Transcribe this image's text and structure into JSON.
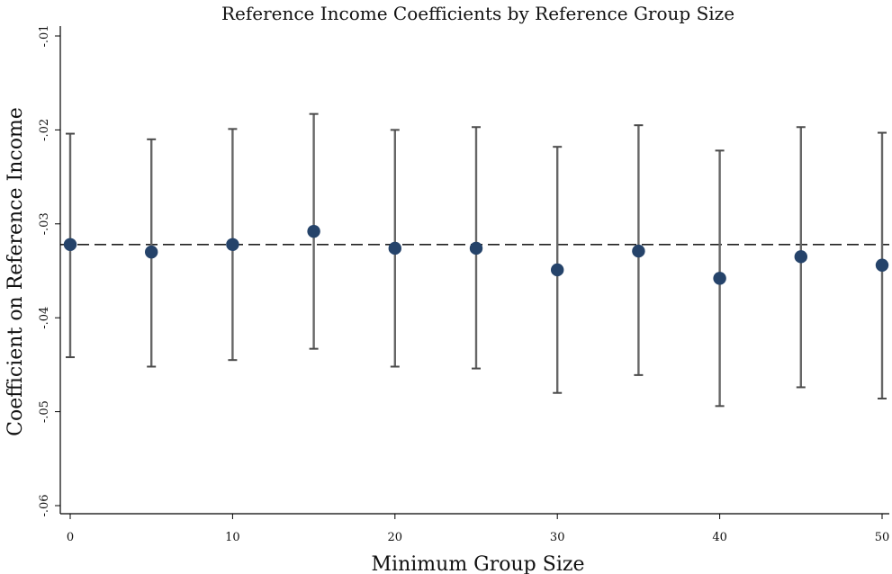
{
  "chart_data": {
    "type": "scatter",
    "title": "Reference Income Coefficients by Reference Group Size",
    "xlabel": "Minimum Group Size",
    "ylabel": "Coefficient on Reference Income",
    "xlim": [
      0,
      50
    ],
    "ylim": [
      -0.06,
      -0.01
    ],
    "x_ticks": [
      0,
      10,
      20,
      30,
      40,
      50
    ],
    "x_tick_labels": [
      "0",
      "10",
      "20",
      "30",
      "40",
      "50"
    ],
    "y_ticks": [
      -0.01,
      -0.02,
      -0.03,
      -0.04,
      -0.05,
      -0.06
    ],
    "y_tick_labels": [
      "-.01",
      "-.02",
      "-.03",
      "-.04",
      "-.05",
      "-.06"
    ],
    "grid": false,
    "legend": "none",
    "reference_line_y": -0.0322,
    "points": [
      {
        "x": 0,
        "y": -0.0322,
        "lower": -0.0442,
        "upper": -0.0204
      },
      {
        "x": 5,
        "y": -0.033,
        "lower": -0.0452,
        "upper": -0.021
      },
      {
        "x": 10,
        "y": -0.0322,
        "lower": -0.0445,
        "upper": -0.0199
      },
      {
        "x": 15,
        "y": -0.0308,
        "lower": -0.0433,
        "upper": -0.0183
      },
      {
        "x": 20,
        "y": -0.0326,
        "lower": -0.0452,
        "upper": -0.02
      },
      {
        "x": 25,
        "y": -0.0326,
        "lower": -0.0454,
        "upper": -0.0197
      },
      {
        "x": 30,
        "y": -0.0349,
        "lower": -0.048,
        "upper": -0.0218
      },
      {
        "x": 35,
        "y": -0.0329,
        "lower": -0.0461,
        "upper": -0.0195
      },
      {
        "x": 40,
        "y": -0.0358,
        "lower": -0.0494,
        "upper": -0.0222
      },
      {
        "x": 45,
        "y": -0.0335,
        "lower": -0.0474,
        "upper": -0.0197
      },
      {
        "x": 50,
        "y": -0.0344,
        "lower": -0.0486,
        "upper": -0.0203
      }
    ],
    "marker_color": "#25436a",
    "errorbar_color": "#666666",
    "reference_line_color": "#222222"
  }
}
